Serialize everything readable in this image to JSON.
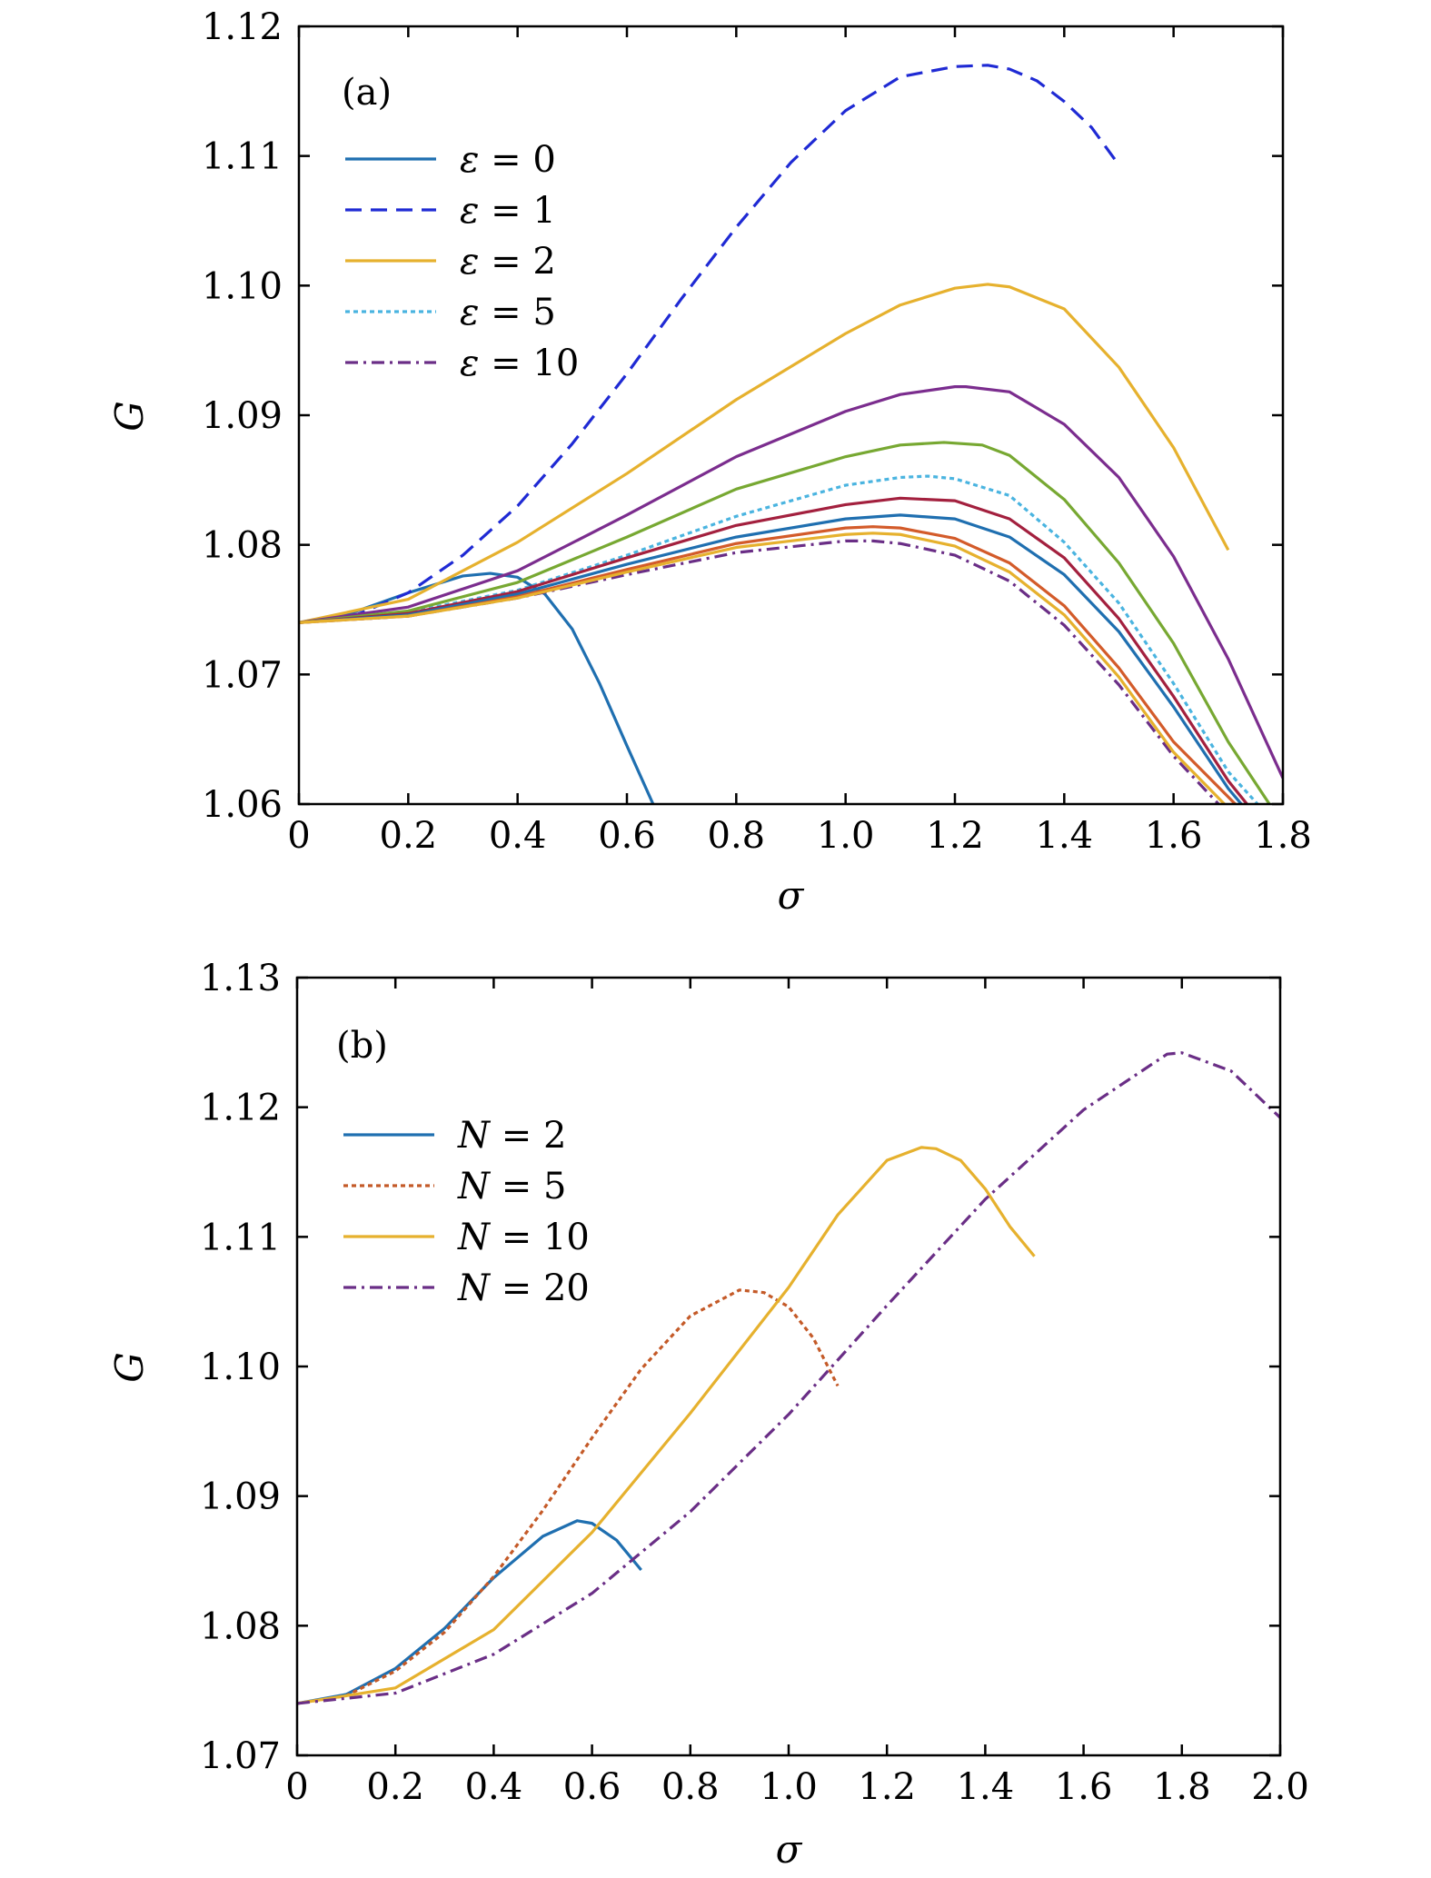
{
  "chart_data": [
    {
      "type": "line",
      "panel_label": "(a)",
      "xlabel": "σ",
      "ylabel": "G",
      "xlim": [
        0,
        1.8
      ],
      "ylim": [
        1.06,
        1.12
      ],
      "xticks": [
        0,
        0.2,
        0.4,
        0.6,
        0.8,
        1.0,
        1.2,
        1.4,
        1.6,
        1.8
      ],
      "xtick_labels": [
        "0",
        "0.2",
        "0.4",
        "0.6",
        "0.8",
        "1.0",
        "1.2",
        "1.4",
        "1.6",
        "1.8"
      ],
      "yticks": [
        1.06,
        1.07,
        1.08,
        1.09,
        1.1,
        1.11,
        1.12
      ],
      "ytick_labels": [
        "1.06",
        "1.07",
        "1.08",
        "1.09",
        "1.10",
        "1.11",
        "1.12"
      ],
      "legend_position": "upper-left",
      "series": [
        {
          "name": "ε = 0",
          "sym": "ε",
          "val": "0",
          "color": "#1f6fb0",
          "dash": "solid",
          "x": [
            0,
            0.1,
            0.2,
            0.3,
            0.35,
            0.4,
            0.45,
            0.5,
            0.55,
            0.6,
            0.65
          ],
          "y": [
            1.074,
            1.0748,
            1.0763,
            1.0776,
            1.0778,
            1.0775,
            1.0762,
            1.0735,
            1.0693,
            1.0645,
            1.0598
          ]
        },
        {
          "name": "ε = 1",
          "sym": "ε",
          "val": "1",
          "color": "#1f2ad4",
          "dash": "dashed",
          "x": [
            0,
            0.1,
            0.2,
            0.3,
            0.4,
            0.5,
            0.6,
            0.7,
            0.8,
            0.9,
            1.0,
            1.1,
            1.2,
            1.26,
            1.3,
            1.35,
            1.4,
            1.45,
            1.5
          ],
          "y": [
            1.074,
            1.0745,
            1.0763,
            1.0792,
            1.083,
            1.0878,
            1.0932,
            1.099,
            1.1045,
            1.1095,
            1.1135,
            1.1161,
            1.1169,
            1.117,
            1.1167,
            1.1158,
            1.1142,
            1.1122,
            1.1093
          ]
        },
        {
          "name": "ε = 2",
          "sym": "ε",
          "val": "2",
          "color": "#e6b12e",
          "dash": "solid",
          "x": [
            0,
            0.2,
            0.4,
            0.6,
            0.8,
            1.0,
            1.1,
            1.2,
            1.26,
            1.3,
            1.4,
            1.5,
            1.6,
            1.7
          ],
          "y": [
            1.074,
            1.0758,
            1.0802,
            1.0855,
            1.0912,
            1.0963,
            1.0985,
            1.0998,
            1.1001,
            1.0999,
            1.0982,
            1.0937,
            1.0875,
            1.0796
          ]
        },
        {
          "name": "ε = 5",
          "sym": "ε",
          "val": "5",
          "color": "#4ab4e0",
          "dash": "dotted",
          "x": [
            0,
            0.2,
            0.4,
            0.6,
            0.8,
            1.0,
            1.1,
            1.15,
            1.2,
            1.3,
            1.4,
            1.5,
            1.6,
            1.7,
            1.76
          ],
          "y": [
            1.074,
            1.0748,
            1.0765,
            1.0792,
            1.0822,
            1.0846,
            1.0852,
            1.0853,
            1.0851,
            1.0838,
            1.0802,
            1.0755,
            1.0693,
            1.0625,
            1.0597
          ]
        },
        {
          "name": "ε = 10",
          "sym": "ε",
          "val": "10",
          "color": "#6a2e86",
          "dash": "dashdot",
          "x": [
            0,
            0.2,
            0.4,
            0.6,
            0.8,
            1.0,
            1.05,
            1.1,
            1.2,
            1.3,
            1.4,
            1.5,
            1.6,
            1.7
          ],
          "y": [
            1.074,
            1.0745,
            1.0759,
            1.0777,
            1.0794,
            1.0803,
            1.0803,
            1.0801,
            1.0792,
            1.0772,
            1.0738,
            1.0692,
            1.0637,
            1.0592
          ]
        },
        {
          "name": "",
          "color": "#7b2d8e",
          "dash": "solid",
          "x": [
            0,
            0.2,
            0.4,
            0.6,
            0.8,
            1.0,
            1.1,
            1.2,
            1.22,
            1.3,
            1.4,
            1.5,
            1.6,
            1.7,
            1.8
          ],
          "y": [
            1.074,
            1.0752,
            1.078,
            1.0823,
            1.0868,
            1.0903,
            1.0916,
            1.0922,
            1.0922,
            1.0918,
            1.0893,
            1.0852,
            1.0791,
            1.0712,
            1.062
          ]
        },
        {
          "name": "",
          "color": "#77a832",
          "dash": "solid",
          "x": [
            0,
            0.2,
            0.4,
            0.6,
            0.8,
            1.0,
            1.1,
            1.18,
            1.25,
            1.3,
            1.4,
            1.5,
            1.6,
            1.7,
            1.78
          ],
          "y": [
            1.074,
            1.0749,
            1.0771,
            1.0806,
            1.0843,
            1.0868,
            1.0877,
            1.0879,
            1.0877,
            1.0869,
            1.0835,
            1.0786,
            1.0724,
            1.0648,
            1.0597
          ]
        },
        {
          "name": "",
          "color": "#a3203e",
          "dash": "solid",
          "x": [
            0,
            0.2,
            0.4,
            0.6,
            0.8,
            1.0,
            1.1,
            1.2,
            1.3,
            1.4,
            1.5,
            1.6,
            1.7,
            1.74
          ],
          "y": [
            1.074,
            1.0747,
            1.0764,
            1.079,
            1.0815,
            1.0831,
            1.0836,
            1.0834,
            1.082,
            1.079,
            1.0743,
            1.0683,
            1.0618,
            1.0597
          ]
        },
        {
          "name": "",
          "color": "#1f6fb0",
          "dash": "solid",
          "x": [
            0,
            0.2,
            0.4,
            0.6,
            0.8,
            1.0,
            1.1,
            1.2,
            1.3,
            1.4,
            1.5,
            1.6,
            1.7,
            1.73
          ],
          "y": [
            1.074,
            1.0746,
            1.0762,
            1.0785,
            1.0806,
            1.082,
            1.0823,
            1.082,
            1.0806,
            1.0777,
            1.0733,
            1.0675,
            1.0612,
            1.0597
          ]
        },
        {
          "name": "",
          "color": "#d35b2a",
          "dash": "solid",
          "x": [
            0,
            0.2,
            0.4,
            0.6,
            0.8,
            1.0,
            1.05,
            1.1,
            1.2,
            1.3,
            1.4,
            1.5,
            1.6,
            1.72
          ],
          "y": [
            1.074,
            1.0745,
            1.076,
            1.0781,
            1.0801,
            1.0813,
            1.0814,
            1.0813,
            1.0805,
            1.0786,
            1.0753,
            1.0705,
            1.0648,
            1.0597
          ]
        },
        {
          "name": "",
          "color": "#e6b12e",
          "dash": "solid",
          "x": [
            0,
            0.2,
            0.4,
            0.6,
            0.8,
            1.0,
            1.05,
            1.1,
            1.2,
            1.3,
            1.4,
            1.5,
            1.6,
            1.7
          ],
          "y": [
            1.074,
            1.0745,
            1.0759,
            1.0779,
            1.0798,
            1.0808,
            1.0809,
            1.0808,
            1.0799,
            1.0779,
            1.0746,
            1.0698,
            1.064,
            1.0597
          ]
        }
      ]
    },
    {
      "type": "line",
      "panel_label": "(b)",
      "xlabel": "σ",
      "ylabel": "G",
      "xlim": [
        0,
        2.0
      ],
      "ylim": [
        1.07,
        1.13
      ],
      "xticks": [
        0,
        0.2,
        0.4,
        0.6,
        0.8,
        1.0,
        1.2,
        1.4,
        1.6,
        1.8,
        2.0
      ],
      "xtick_labels": [
        "0",
        "0.2",
        "0.4",
        "0.6",
        "0.8",
        "1.0",
        "1.2",
        "1.4",
        "1.6",
        "1.8",
        "2.0"
      ],
      "yticks": [
        1.07,
        1.08,
        1.09,
        1.1,
        1.11,
        1.12,
        1.13
      ],
      "ytick_labels": [
        "1.07",
        "1.08",
        "1.09",
        "1.10",
        "1.11",
        "1.12",
        "1.13"
      ],
      "legend_position": "upper-left",
      "series": [
        {
          "name": "N = 2",
          "sym": "N",
          "val": "2",
          "color": "#1f6fb0",
          "dash": "solid",
          "x": [
            0,
            0.1,
            0.2,
            0.3,
            0.4,
            0.5,
            0.57,
            0.6,
            0.65,
            0.7
          ],
          "y": [
            1.074,
            1.0747,
            1.0767,
            1.0798,
            1.0837,
            1.0869,
            1.0881,
            1.0879,
            1.0866,
            1.0843
          ]
        },
        {
          "name": "N = 5",
          "sym": "N",
          "val": "5",
          "color": "#c45a28",
          "dash": "dotted",
          "x": [
            0,
            0.1,
            0.2,
            0.3,
            0.4,
            0.5,
            0.6,
            0.7,
            0.8,
            0.9,
            0.95,
            1.0,
            1.05,
            1.1
          ],
          "y": [
            1.074,
            1.0746,
            1.0765,
            1.0795,
            1.0838,
            1.0889,
            1.0945,
            1.0998,
            1.1039,
            1.1059,
            1.1057,
            1.1046,
            1.1022,
            1.0985
          ]
        },
        {
          "name": "N = 10",
          "sym": "N",
          "val": "10",
          "color": "#e6b12e",
          "dash": "solid",
          "x": [
            0,
            0.2,
            0.4,
            0.6,
            0.8,
            1.0,
            1.1,
            1.2,
            1.27,
            1.3,
            1.35,
            1.4,
            1.45,
            1.5
          ],
          "y": [
            1.074,
            1.0752,
            1.0797,
            1.0872,
            1.0964,
            1.1061,
            1.1117,
            1.1159,
            1.1169,
            1.1168,
            1.1159,
            1.1137,
            1.1108,
            1.1085
          ]
        },
        {
          "name": "N = 20",
          "sym": "N",
          "val": "20",
          "color": "#6a2e86",
          "dash": "dashdot",
          "x": [
            0,
            0.2,
            0.4,
            0.6,
            0.8,
            1.0,
            1.2,
            1.4,
            1.6,
            1.77,
            1.8,
            1.9,
            2.0
          ],
          "y": [
            1.074,
            1.0748,
            1.0778,
            1.0825,
            1.0888,
            1.0963,
            1.1047,
            1.1129,
            1.1198,
            1.1241,
            1.1242,
            1.1228,
            1.1192
          ]
        }
      ]
    }
  ]
}
